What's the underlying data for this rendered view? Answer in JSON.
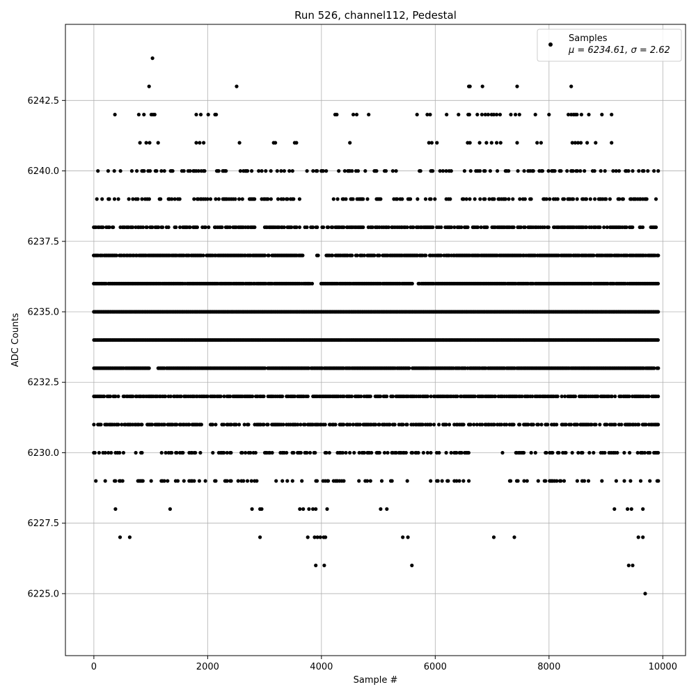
{
  "chart_data": {
    "type": "scatter",
    "title": "Run 526, channel112, Pedestal",
    "xlabel": "Sample #",
    "ylabel": "ADC Counts",
    "xlim": [
      -500,
      10400
    ],
    "ylim": [
      6222.8,
      6245.2
    ],
    "xticks": [
      0,
      2000,
      4000,
      6000,
      8000,
      10000
    ],
    "yticks": [
      6225.0,
      6227.5,
      6230.0,
      6232.5,
      6235.0,
      6237.5,
      6240.0,
      6242.5
    ],
    "xtick_labels": [
      "0",
      "2000",
      "4000",
      "6000",
      "8000",
      "10000"
    ],
    "ytick_labels": [
      "6225.0",
      "6227.5",
      "6230.0",
      "6232.5",
      "6235.0",
      "6237.5",
      "6240.0",
      "6242.5"
    ],
    "grid": true,
    "legend_position": "top-right",
    "marker_color": "#000000",
    "series": [
      {
        "name": "Samples",
        "stats_label": "μ = 6234.61, σ = 2.62",
        "mean": 6234.61,
        "std": 2.62,
        "sample_range": [
          0,
          9920
        ],
        "levels": [
          {
            "y": 6244,
            "x": [
              1030
            ]
          },
          {
            "y": 6243,
            "x": [
              970,
              2510,
              6590,
              6610,
              6830,
              7440,
              8390
            ]
          },
          {
            "y": 6242,
            "x": [
              370,
              790,
              880,
              1010,
              1040,
              1070,
              1800,
              1880,
              2010,
              2130,
              2150,
              4240,
              4270,
              4560,
              4620,
              4830,
              5680,
              5860,
              5910,
              6200,
              6410,
              6580,
              6600,
              6740,
              6820,
              6880,
              6930,
              6990,
              7030,
              7080,
              7140,
              7330,
              7410,
              7480,
              7760,
              8000,
              8340,
              8390,
              8430,
              8460,
              8490,
              8570,
              8700,
              8930,
              9100
            ]
          },
          {
            "y": 6241,
            "x": [
              810,
              920,
              980,
              1130,
              1800,
              1860,
              1930,
              2560,
              3160,
              3190,
              3530,
              3560,
              4500,
              5890,
              5940,
              6030,
              6570,
              6610,
              6780,
              6900,
              6990,
              7080,
              7150,
              7440,
              7790,
              7860,
              8410,
              8460,
              8510,
              8560,
              8670,
              8820,
              9100
            ]
          }
        ],
        "dense_levels": [
          {
            "y": 6240,
            "density": 0.28,
            "gaps": [
              [
                4150,
                4300
              ],
              [
                5400,
                5600
              ]
            ]
          },
          {
            "y": 6239,
            "density": 0.3,
            "gaps": [
              [
                3700,
                4200
              ]
            ]
          },
          {
            "y": 6238,
            "density": 0.6,
            "gaps": [
              [
                2850,
                3000
              ]
            ]
          },
          {
            "y": 6237,
            "density": 0.85,
            "gaps": [
              [
                3680,
                3900
              ],
              [
                3950,
                4080
              ]
            ]
          },
          {
            "y": 6236,
            "density": 0.95,
            "gaps": [
              [
                3850,
                3980
              ],
              [
                5600,
                5700
              ]
            ]
          },
          {
            "y": 6235,
            "density": 1.0,
            "gaps": []
          },
          {
            "y": 6234,
            "density": 1.0,
            "gaps": []
          },
          {
            "y": 6233,
            "density": 0.95,
            "gaps": [
              [
                1000,
                1100
              ]
            ]
          },
          {
            "y": 6232,
            "density": 0.7,
            "gaps": []
          },
          {
            "y": 6231,
            "density": 0.55,
            "gaps": [
              [
                1900,
                2050
              ]
            ]
          },
          {
            "y": 6230,
            "density": 0.35,
            "gaps": [
              [
                900,
                1100
              ],
              [
                6700,
                7150
              ]
            ]
          },
          {
            "y": 6229,
            "density": 0.2,
            "gaps": [
              [
                6600,
                7300
              ]
            ]
          }
        ],
        "sparse_levels": [
          {
            "y": 6228,
            "x": [
              380,
              1340,
              2780,
              2920,
              2950,
              3620,
              3680,
              3780,
              3850,
              3900,
              4100,
              5040,
              5150,
              9150,
              9380,
              9450,
              9650
            ]
          },
          {
            "y": 6227,
            "x": [
              460,
              630,
              2920,
              3760,
              3880,
              3930,
              3980,
              4040,
              4070,
              5430,
              5520,
              7030,
              7390,
              9570,
              9650
            ]
          },
          {
            "y": 6226,
            "x": [
              3900,
              4050,
              5590,
              9400,
              9470
            ]
          },
          {
            "y": 6225,
            "x": [
              9690
            ]
          }
        ]
      }
    ]
  }
}
